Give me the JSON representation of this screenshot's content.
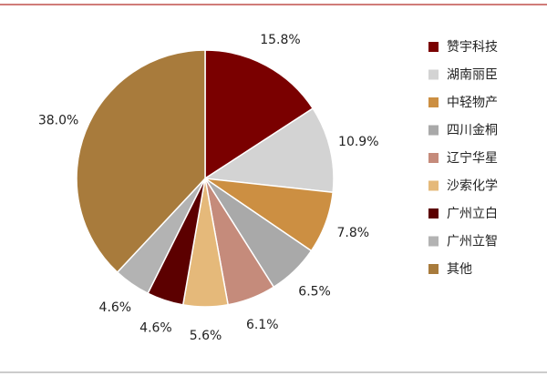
{
  "chart_data": {
    "type": "pie",
    "categories": [
      "赞宇科技",
      "湖南丽臣",
      "中轻物产",
      "四川金桐",
      "辽宁华星",
      "沙索化学",
      "广州立白",
      "广州立智",
      "其他"
    ],
    "values": [
      15.8,
      10.9,
      7.8,
      6.5,
      6.1,
      5.6,
      4.6,
      4.6,
      38.0
    ],
    "value_labels": [
      "15.8%",
      "10.9%",
      "7.8%",
      "6.5%",
      "6.1%",
      "5.6%",
      "4.6%",
      "4.6%",
      "38.0%"
    ],
    "colors": [
      "#7a0000",
      "#d3d3d3",
      "#cc8f42",
      "#a9a9a9",
      "#c58b7b",
      "#e5b97a",
      "#5c0000",
      "#b3b3b3",
      "#a87b3c"
    ],
    "legend": "right"
  }
}
